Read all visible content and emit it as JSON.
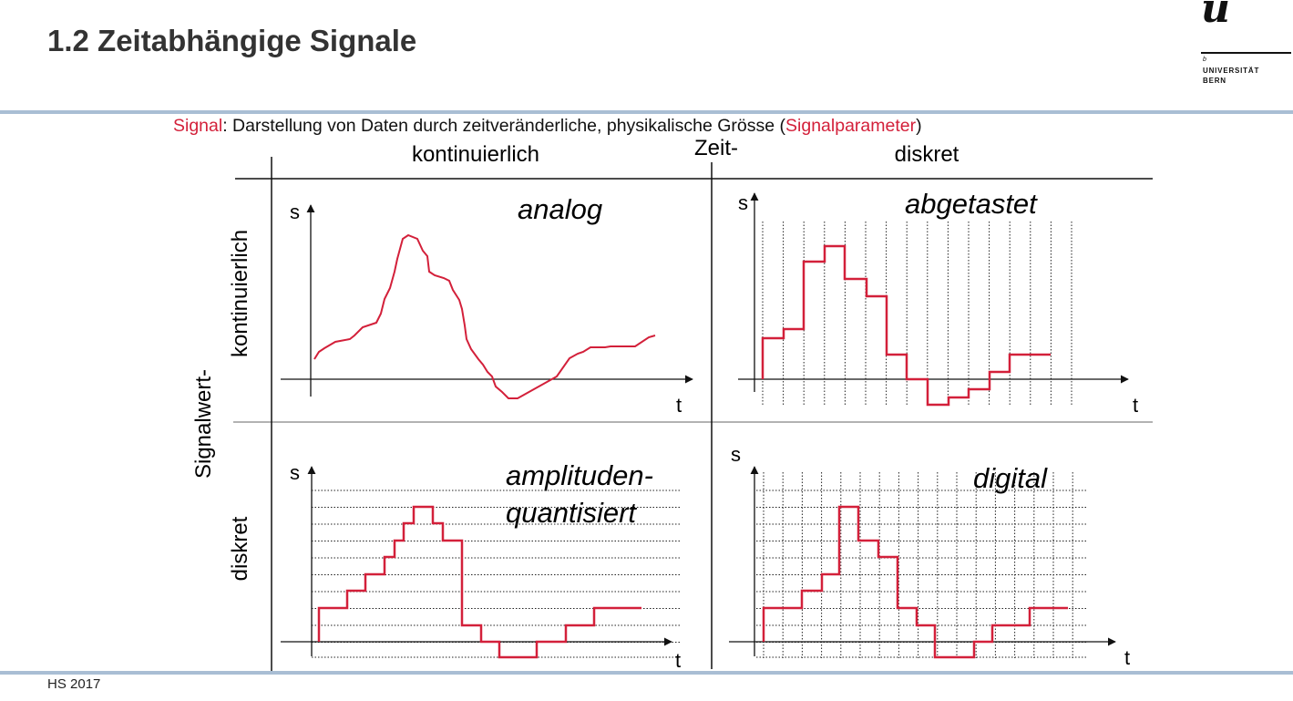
{
  "header": {
    "title": "1.2 Zeitabhängige Signale"
  },
  "logo": {
    "mark": "u",
    "sup": "b",
    "line1": "UNIVERSITÄT",
    "line2": "BERN"
  },
  "definition": {
    "term": "Signal",
    "text1": ": Darstellung von Daten durch zeitveränderliche, physikalische Grösse (",
    "param": "Signalparameter",
    "text2": ")"
  },
  "axes_labels": {
    "time_axis_title": "Zeit-",
    "time_continuous": "kontinuierlich",
    "time_discrete": "diskret",
    "value_axis_title": "Signalwert-",
    "value_continuous": "kontinuierlich",
    "value_discrete": "diskret"
  },
  "panels": {
    "analog": {
      "label": "analog",
      "s": "s",
      "t": "t"
    },
    "sampled": {
      "label": "abgetastet",
      "s": "s",
      "t": "t"
    },
    "quantized": {
      "label1": "amplituden-",
      "label2": "quantisiert",
      "s": "s",
      "t": "t"
    },
    "digital": {
      "label": "digital",
      "s": "s",
      "t": "t"
    }
  },
  "colors": {
    "signal": "#d3203a",
    "accent_rule": "#a9bed4"
  },
  "footer": {
    "text": "HS 2017"
  }
}
